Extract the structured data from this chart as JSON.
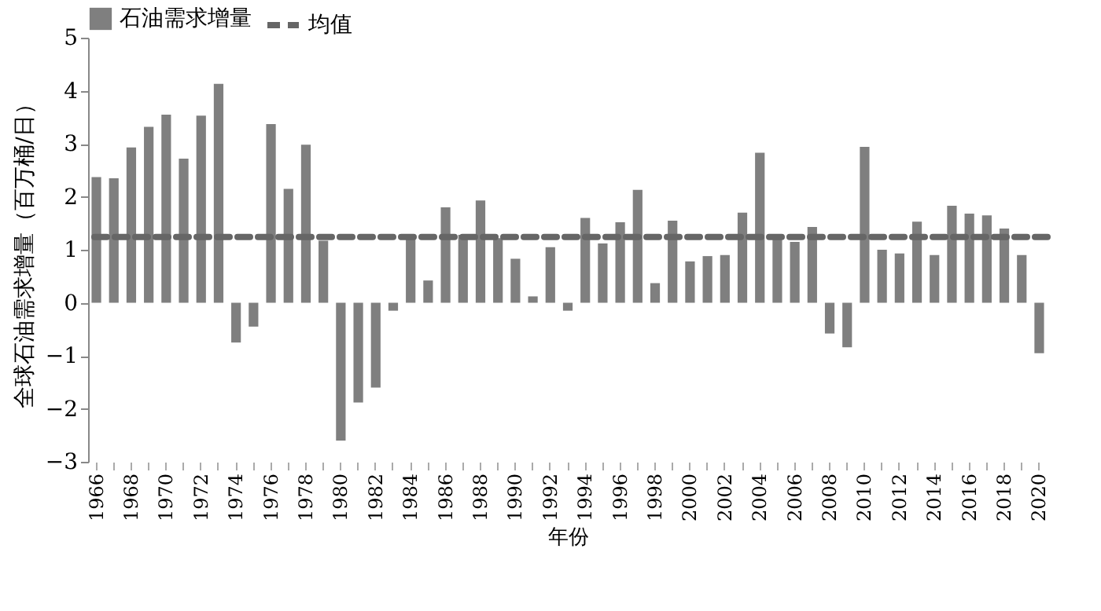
{
  "chart_data": {
    "type": "bar",
    "xlabel": "年份",
    "ylabel": "全球石油需求增量（百万桶/日）",
    "categories": [
      "1966",
      null,
      "1968",
      null,
      "1970",
      null,
      "1972",
      null,
      "1974",
      null,
      "1976",
      null,
      "1978",
      null,
      "1980",
      null,
      "1982",
      null,
      "1984",
      null,
      "1986",
      null,
      "1988",
      null,
      "1990",
      null,
      "1992",
      null,
      "1994",
      null,
      "1996",
      null,
      "1998",
      null,
      "2000",
      null,
      "2002",
      null,
      "2004",
      null,
      "2006",
      null,
      "2008",
      null,
      "2010",
      null,
      "2012",
      null,
      "2014",
      null,
      "2016",
      null,
      "2018",
      null,
      "2020"
    ],
    "series": [
      {
        "name": "石油需求增量",
        "color": "#7f7f7f",
        "values": [
          2.37,
          2.35,
          2.93,
          3.32,
          3.55,
          2.72,
          3.53,
          4.13,
          -0.75,
          -0.45,
          3.37,
          2.15,
          2.98,
          1.17,
          -2.6,
          -1.88,
          -1.6,
          -0.15,
          1.23,
          0.42,
          1.8,
          1.28,
          1.93,
          1.22,
          0.83,
          0.12,
          1.05,
          -0.15,
          1.6,
          1.12,
          1.52,
          2.13,
          0.37,
          1.55,
          0.78,
          0.88,
          0.9,
          1.7,
          2.83,
          1.28,
          1.15,
          1.43,
          -0.58,
          -0.84,
          2.94,
          1.0,
          0.93,
          1.53,
          0.9,
          1.83,
          1.68,
          1.65,
          1.4,
          0.9,
          -0.95
        ]
      }
    ],
    "ref_lines": [
      {
        "axis": "y",
        "value": 1.24,
        "label": "均值",
        "color": "#666666",
        "line_style": "dashed"
      }
    ],
    "ylim": [
      -3,
      5
    ],
    "yticks": [
      -3,
      -2,
      -1,
      0,
      1,
      2,
      3,
      4,
      5
    ],
    "grid": false,
    "legend": "top"
  }
}
